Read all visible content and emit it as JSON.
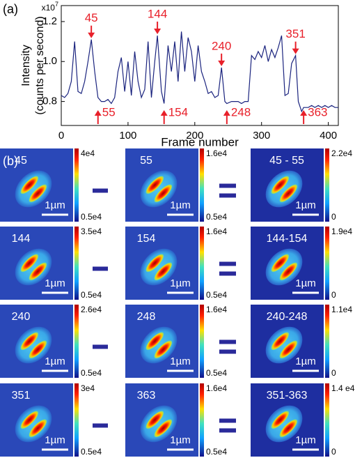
{
  "chart_data": {
    "type": "line",
    "panel_label": "(a)",
    "x_label": "Frame number",
    "y_label": [
      "Intensity",
      "(counts per second)"
    ],
    "axis_multiplier": {
      "base": "x10",
      "exponent": "7"
    },
    "xlim": [
      0,
      415
    ],
    "xticks": [
      0,
      100,
      200,
      300,
      400
    ],
    "ylim": [
      0.68,
      1.28
    ],
    "yticks": [
      0.8,
      {
        "value": 1,
        "label": "1.0"
      },
      1.2
    ],
    "color": "#1a237e",
    "x": [
      0,
      5,
      10,
      15,
      20,
      25,
      30,
      35,
      40,
      45,
      50,
      55,
      60,
      65,
      70,
      75,
      80,
      85,
      90,
      95,
      100,
      105,
      110,
      115,
      120,
      125,
      130,
      135,
      140,
      144,
      150,
      154,
      160,
      165,
      170,
      175,
      180,
      185,
      190,
      195,
      200,
      205,
      210,
      215,
      220,
      225,
      230,
      235,
      240,
      245,
      248,
      255,
      260,
      265,
      270,
      275,
      280,
      285,
      290,
      295,
      300,
      305,
      310,
      315,
      320,
      325,
      330,
      335,
      340,
      345,
      351,
      355,
      360,
      363,
      370,
      375,
      380,
      385,
      390,
      395,
      400,
      405,
      410,
      415
    ],
    "values": [
      0.83,
      0.82,
      0.84,
      0.9,
      1.1,
      0.85,
      0.84,
      0.9,
      1.0,
      1.11,
      0.95,
      0.82,
      0.8,
      0.8,
      0.81,
      0.79,
      0.82,
      0.95,
      1.02,
      0.85,
      1.0,
      0.83,
      1.05,
      0.9,
      0.82,
      0.86,
      1.1,
      0.82,
      1.0,
      1.13,
      0.85,
      0.79,
      1.08,
      0.95,
      1.1,
      0.9,
      1.15,
      0.95,
      1.12,
      1.05,
      0.9,
      1.08,
      0.95,
      0.9,
      0.84,
      0.85,
      0.82,
      0.83,
      0.97,
      0.8,
      0.79,
      0.8,
      0.8,
      0.8,
      0.79,
      0.8,
      0.8,
      1.03,
      1.01,
      1.05,
      1.02,
      1.08,
      1.0,
      1.06,
      1.02,
      1.07,
      1.13,
      0.83,
      0.84,
      0.99,
      1.03,
      0.8,
      0.75,
      0.77,
      0.77,
      0.78,
      0.77,
      0.78,
      0.77,
      0.78,
      0.77,
      0.78,
      0.77,
      0.77
    ],
    "annotations": [
      {
        "x": 45,
        "label": "45",
        "direction": "down"
      },
      {
        "x": 144,
        "label": "144",
        "direction": "down"
      },
      {
        "x": 240,
        "label": "240",
        "direction": "down"
      },
      {
        "x": 351,
        "label": "351",
        "direction": "down"
      },
      {
        "x": 55,
        "label": "55",
        "direction": "up"
      },
      {
        "x": 154,
        "label": "154",
        "direction": "up"
      },
      {
        "x": 248,
        "label": "248",
        "direction": "up"
      },
      {
        "x": 363,
        "label": "363",
        "direction": "up"
      }
    ],
    "annotation_color": "#e8202a"
  },
  "panel_b": {
    "panel_label": "(b)",
    "scale_bar": "1µm",
    "rows": [
      {
        "images": [
          {
            "label": "45",
            "cbar_max": "4e4",
            "cbar_min": "0.5e4"
          },
          {
            "label": "55",
            "cbar_max": "1.6e4",
            "cbar_min": "0.5e4"
          },
          {
            "label": "45 - 55",
            "cbar_max": "2.2e4",
            "cbar_min": "0"
          }
        ]
      },
      {
        "images": [
          {
            "label": "144",
            "cbar_max": "3.5e4",
            "cbar_min": "0.5e4"
          },
          {
            "label": "154",
            "cbar_max": "1.6e4",
            "cbar_min": "0.5e4"
          },
          {
            "label": "144-154",
            "cbar_max": "1.9e4",
            "cbar_min": "0"
          }
        ]
      },
      {
        "images": [
          {
            "label": "240",
            "cbar_max": "2.6e4",
            "cbar_min": "0.5e4"
          },
          {
            "label": "248",
            "cbar_max": "1.6e4",
            "cbar_min": "0.5e4"
          },
          {
            "label": "240-248",
            "cbar_max": "1.1e4",
            "cbar_min": "0"
          }
        ]
      },
      {
        "images": [
          {
            "label": "351",
            "cbar_max": "3e4",
            "cbar_min": "0.5e4"
          },
          {
            "label": "363",
            "cbar_max": "1.6e4",
            "cbar_min": "0.5e4"
          },
          {
            "label": "351-363",
            "cbar_max": "1.4 e4",
            "cbar_min": "0"
          }
        ]
      }
    ]
  }
}
